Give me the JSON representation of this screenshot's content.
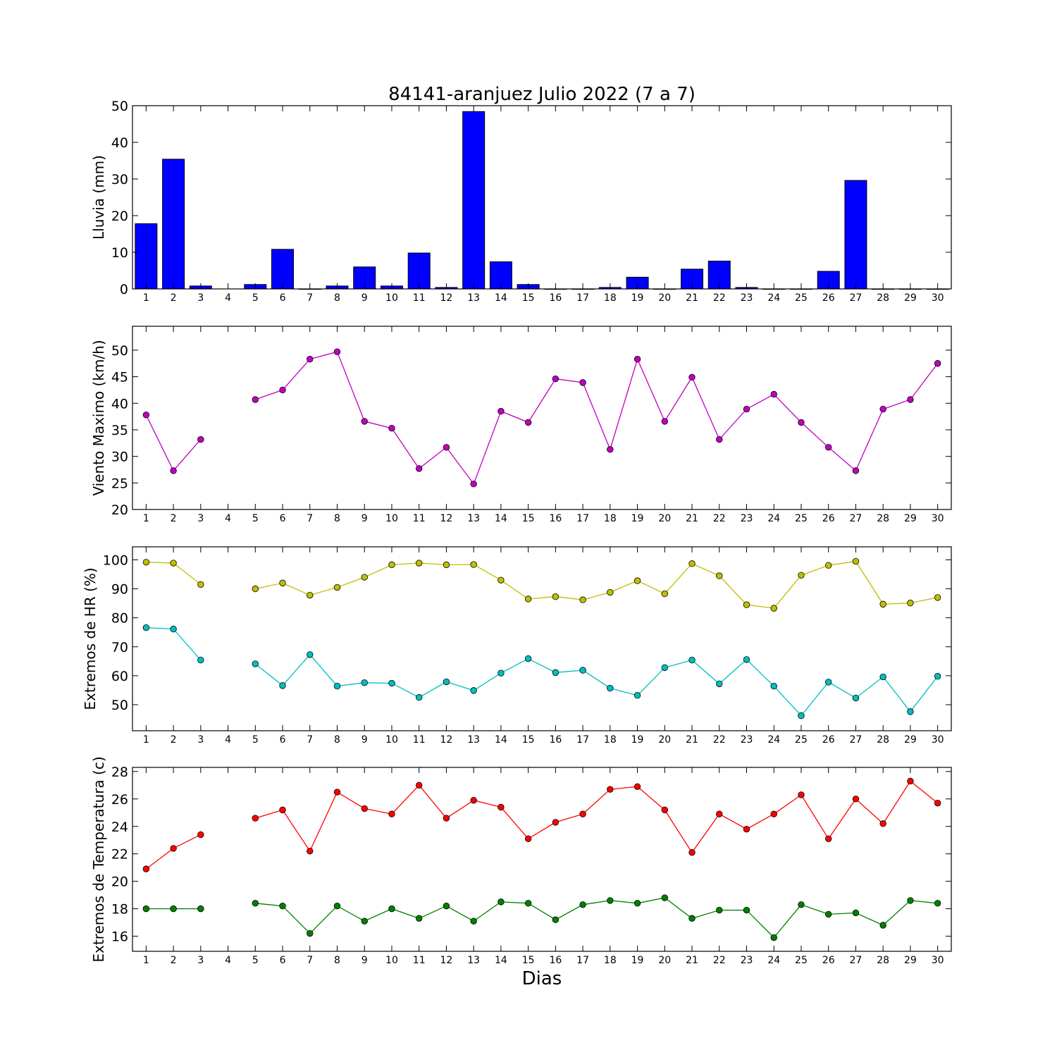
{
  "title": "84141-aranjuez Julio 2022  (7 a 7)",
  "xlabel": "Dias",
  "colors": {
    "rain": "#0000ff",
    "wind": "#bf00bf",
    "hr_max": "#bfbf00",
    "hr_min": "#00bfbf",
    "temp_max": "#ff0000",
    "temp_min": "#008000"
  },
  "chart_data": [
    {
      "type": "bar",
      "ylabel": "Lluvia (mm)",
      "xlim": [
        0.5,
        30.5
      ],
      "ylim": [
        0,
        50
      ],
      "yticks": [
        0,
        10,
        20,
        30,
        40,
        50
      ],
      "x": [
        1,
        2,
        3,
        4,
        5,
        6,
        7,
        8,
        9,
        10,
        11,
        12,
        13,
        14,
        15,
        16,
        17,
        18,
        19,
        20,
        21,
        22,
        23,
        24,
        25,
        26,
        27,
        28,
        29,
        30
      ],
      "series": [
        {
          "values": [
            17.8,
            35.4,
            0.8,
            null,
            1.2,
            10.8,
            0.0,
            0.8,
            6.0,
            0.8,
            9.8,
            0.4,
            48.4,
            7.4,
            1.2,
            0.0,
            0.0,
            0.4,
            3.2,
            0.0,
            5.4,
            7.6,
            0.4,
            0.0,
            0.0,
            4.8,
            29.6,
            0.0,
            0.0,
            0.0
          ]
        }
      ],
      "grid": false
    },
    {
      "type": "line",
      "ylabel": "Viento Maximo (km/h)",
      "xlim": [
        0.5,
        30.5
      ],
      "ylim": [
        20,
        54.5
      ],
      "yticks": [
        20,
        25,
        30,
        35,
        40,
        45,
        50
      ],
      "x": [
        1,
        2,
        3,
        4,
        5,
        6,
        7,
        8,
        9,
        10,
        11,
        12,
        13,
        14,
        15,
        16,
        17,
        18,
        19,
        20,
        21,
        22,
        23,
        24,
        25,
        26,
        27,
        28,
        29,
        30
      ],
      "series": [
        {
          "values": [
            37.8,
            27.3,
            33.2,
            null,
            40.7,
            42.5,
            48.3,
            49.7,
            36.6,
            35.3,
            27.7,
            31.7,
            24.8,
            38.5,
            36.4,
            44.6,
            43.9,
            31.3,
            48.3,
            36.6,
            44.9,
            33.2,
            38.9,
            41.7,
            36.4,
            31.7,
            27.3,
            38.9,
            40.7,
            47.5
          ]
        }
      ],
      "grid": false
    },
    {
      "type": "line",
      "ylabel": "Extremos de HR (%)",
      "xlim": [
        0.5,
        30.5
      ],
      "ylim": [
        41,
        104.5
      ],
      "yticks": [
        50,
        60,
        70,
        80,
        90,
        100
      ],
      "x": [
        1,
        2,
        3,
        4,
        5,
        6,
        7,
        8,
        9,
        10,
        11,
        12,
        13,
        14,
        15,
        16,
        17,
        18,
        19,
        20,
        21,
        22,
        23,
        24,
        25,
        26,
        27,
        28,
        29,
        30
      ],
      "series": [
        {
          "values": [
            99.2,
            98.9,
            91.5,
            null,
            90.0,
            92.0,
            87.8,
            90.5,
            94.0,
            98.3,
            98.9,
            98.3,
            98.4,
            93.0,
            86.5,
            87.3,
            86.2,
            88.8,
            92.8,
            88.3,
            98.7,
            94.5,
            84.5,
            83.3,
            94.7,
            98.1,
            99.5,
            84.7,
            85.1,
            87.0
          ]
        },
        {
          "values": [
            76.6,
            76.1,
            65.4,
            null,
            64.1,
            56.6,
            67.3,
            56.4,
            57.6,
            57.4,
            52.5,
            57.9,
            54.9,
            60.9,
            65.9,
            61.1,
            61.9,
            55.7,
            53.2,
            62.8,
            65.4,
            57.2,
            65.6,
            56.4,
            46.2,
            57.8,
            52.3,
            59.6,
            47.6,
            59.8
          ]
        }
      ],
      "grid": false
    },
    {
      "type": "line",
      "ylabel": "Extremos de Temperatura (c)",
      "xlim": [
        0.5,
        30.5
      ],
      "ylim": [
        14.9,
        28.3
      ],
      "yticks": [
        16,
        18,
        20,
        22,
        24,
        26,
        28
      ],
      "x": [
        1,
        2,
        3,
        4,
        5,
        6,
        7,
        8,
        9,
        10,
        11,
        12,
        13,
        14,
        15,
        16,
        17,
        18,
        19,
        20,
        21,
        22,
        23,
        24,
        25,
        26,
        27,
        28,
        29,
        30
      ],
      "series": [
        {
          "values": [
            20.9,
            22.4,
            23.4,
            null,
            24.6,
            25.2,
            22.2,
            26.5,
            25.3,
            24.9,
            27.0,
            24.6,
            25.9,
            25.4,
            23.1,
            24.3,
            24.9,
            26.7,
            26.9,
            25.2,
            22.1,
            24.9,
            23.8,
            24.9,
            26.3,
            23.1,
            26.0,
            24.2,
            27.3,
            25.7
          ]
        },
        {
          "values": [
            18.0,
            18.0,
            18.0,
            null,
            18.4,
            18.2,
            16.2,
            18.2,
            17.1,
            18.0,
            17.3,
            18.2,
            17.1,
            18.5,
            18.4,
            17.2,
            18.3,
            18.6,
            18.4,
            18.8,
            17.3,
            17.9,
            17.9,
            15.9,
            18.3,
            17.6,
            17.7,
            16.8,
            18.6,
            18.4
          ]
        }
      ],
      "grid": false
    }
  ]
}
